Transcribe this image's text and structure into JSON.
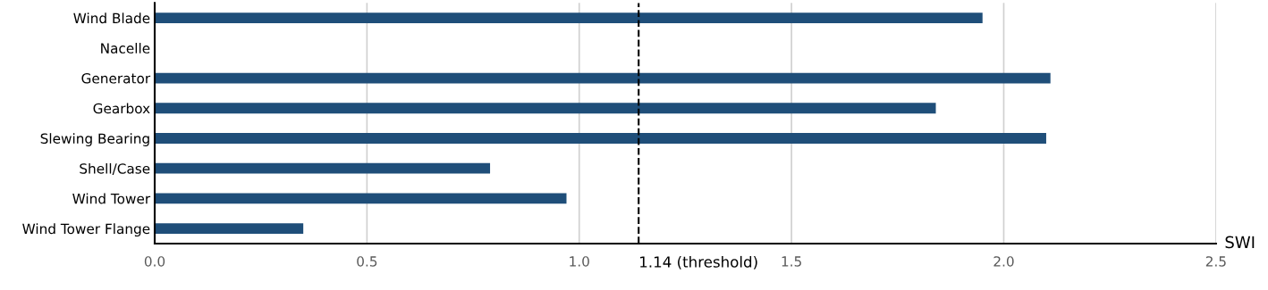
{
  "chart_data": {
    "type": "bar",
    "orientation": "horizontal",
    "xlabel": "SWI",
    "categories": [
      "Wind Blade",
      "Nacelle",
      "Generator",
      "Gearbox",
      "Slewing Bearing",
      "Shell/Case",
      "Wind Tower",
      "Wind Tower Flange"
    ],
    "values": [
      1.95,
      0,
      2.11,
      1.84,
      2.1,
      0.79,
      0.97,
      0.35
    ],
    "color": "#1f4e79",
    "xlim": [
      0,
      2.5
    ],
    "xticks": [
      {
        "value": 0,
        "label": "0.0"
      },
      {
        "value": 0.5,
        "label": "0.5"
      },
      {
        "value": 1,
        "label": "1.0"
      },
      {
        "value": 1.5,
        "label": "1.5"
      },
      {
        "value": 2,
        "label": "2.0"
      },
      {
        "value": 2.5,
        "label": "2.5"
      }
    ],
    "grid": "x",
    "ref_lines": [
      {
        "axis": "x",
        "value": 1.14,
        "label": "1.14 (threshold)",
        "color": "#000000",
        "line_style": "dashed"
      }
    ]
  }
}
